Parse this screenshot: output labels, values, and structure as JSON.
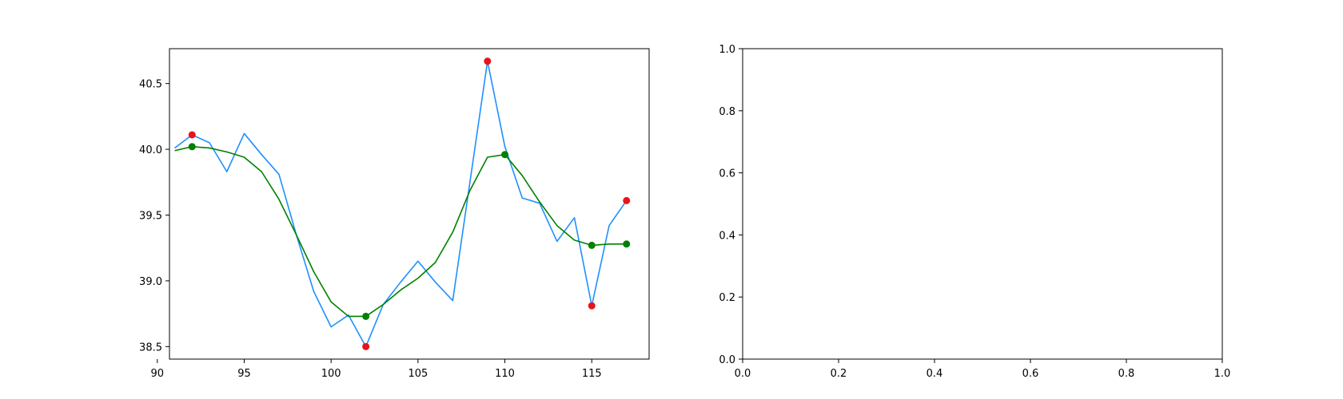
{
  "chart_data": [
    {
      "type": "line",
      "xlim": [
        90.7,
        118.3
      ],
      "ylim": [
        38.405,
        40.765
      ],
      "xticks": [
        90,
        95,
        100,
        105,
        110,
        115
      ],
      "xtick_labels": [
        "90",
        "95",
        "100",
        "105",
        "110",
        "115"
      ],
      "yticks": [
        38.5,
        39.0,
        39.5,
        40.0,
        40.5
      ],
      "ytick_labels": [
        "38.5",
        "39.0",
        "39.5",
        "40.0",
        "40.5"
      ],
      "grid": false,
      "series": [
        {
          "kind": "line",
          "color": "#1e90ff",
          "x": [
            91,
            92,
            93,
            94,
            95,
            96,
            97,
            98,
            99,
            100,
            101,
            102,
            103,
            104,
            105,
            106,
            107,
            108,
            109,
            110,
            111,
            112,
            113,
            114,
            115,
            116,
            117
          ],
          "y": [
            40.01,
            40.11,
            40.05,
            39.83,
            40.12,
            39.96,
            39.81,
            39.35,
            38.92,
            38.65,
            38.74,
            38.5,
            38.82,
            38.99,
            39.15,
            38.99,
            38.85,
            39.76,
            40.67,
            40.02,
            39.63,
            39.59,
            39.3,
            39.48,
            38.81,
            39.42,
            39.61
          ]
        },
        {
          "kind": "line",
          "color": "#008000",
          "x": [
            91,
            92,
            93,
            94,
            95,
            96,
            97,
            98,
            99,
            100,
            101,
            102,
            103,
            104,
            105,
            106,
            107,
            108,
            109,
            110,
            111,
            112,
            113,
            114,
            115,
            116,
            117
          ],
          "y": [
            39.99,
            40.02,
            40.01,
            39.98,
            39.94,
            39.83,
            39.62,
            39.35,
            39.07,
            38.84,
            38.73,
            38.73,
            38.82,
            38.93,
            39.02,
            39.14,
            39.37,
            39.69,
            39.94,
            39.96,
            39.8,
            39.6,
            39.42,
            39.31,
            39.27,
            39.28,
            39.28
          ]
        },
        {
          "kind": "scatter",
          "color": "#e8141c",
          "x": [
            92,
            102,
            109,
            115,
            117
          ],
          "y": [
            40.11,
            38.5,
            40.67,
            38.81,
            39.61
          ]
        },
        {
          "kind": "scatter",
          "color": "#008000",
          "x": [
            92,
            102,
            110,
            115,
            117
          ],
          "y": [
            40.02,
            38.73,
            39.96,
            39.27,
            39.28
          ]
        }
      ]
    },
    {
      "type": "line",
      "xlim": [
        0.0,
        1.0
      ],
      "ylim": [
        0.0,
        1.0
      ],
      "xticks": [
        0.0,
        0.2,
        0.4,
        0.6,
        0.8,
        1.0
      ],
      "xtick_labels": [
        "0.0",
        "0.2",
        "0.4",
        "0.6",
        "0.8",
        "1.0"
      ],
      "yticks": [
        0.0,
        0.2,
        0.4,
        0.6,
        0.8,
        1.0
      ],
      "ytick_labels": [
        "0.0",
        "0.2",
        "0.4",
        "0.6",
        "0.8",
        "1.0"
      ],
      "grid": false,
      "series": []
    }
  ]
}
